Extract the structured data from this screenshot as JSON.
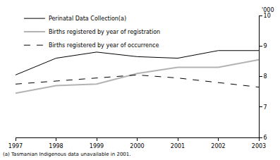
{
  "chart_data": {
    "type": "line",
    "ylabel": "'000",
    "note": "(a) Tasmanian Indigenous data unavailable in 2001.",
    "x": [
      1997,
      1998,
      1999,
      2000,
      2001,
      2002,
      2003
    ],
    "xlim": [
      1997,
      2003
    ],
    "xticks": [
      1997,
      1998,
      1999,
      2000,
      2001,
      2002,
      2003
    ],
    "ylim": [
      6,
      10
    ],
    "yticks": [
      6,
      7,
      8,
      9,
      10
    ],
    "grid": false,
    "legend": "upper left",
    "series": [
      {
        "name": "Perinatal Data Collection(a)",
        "color": "#000000",
        "line_style": "solid",
        "values": [
          8.05,
          8.6,
          8.8,
          8.65,
          8.6,
          8.85,
          8.85
        ]
      },
      {
        "name": "Births registered by year of registration",
        "color": "#b3b3b3",
        "line_style": "solid",
        "values": [
          7.45,
          7.7,
          7.75,
          8.1,
          8.3,
          8.3,
          8.55
        ]
      },
      {
        "name": "Births registered by year of occurrence",
        "color": "#000000",
        "line_style": "dash",
        "values": [
          7.75,
          7.85,
          7.95,
          8.05,
          7.95,
          7.8,
          7.65
        ]
      }
    ]
  }
}
